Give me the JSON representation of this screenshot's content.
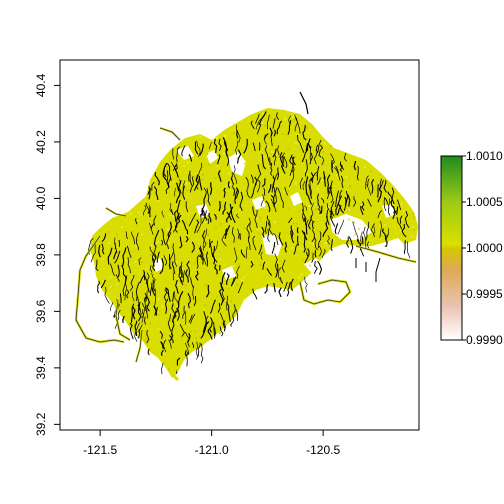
{
  "chart_data": {
    "type": "heatmap",
    "x_ticks": [
      "-121.5",
      "-121.0",
      "-120.5"
    ],
    "x_tick_values": [
      -121.5,
      -121.0,
      -120.5
    ],
    "y_ticks": [
      "39.2",
      "39.4",
      "39.6",
      "39.8",
      "40.0",
      "40.2",
      "40.4"
    ],
    "y_tick_values": [
      39.2,
      39.4,
      39.6,
      39.8,
      40.0,
      40.2,
      40.4
    ],
    "xlim": [
      -121.68,
      -120.07
    ],
    "ylim": [
      39.18,
      40.49
    ],
    "legend": {
      "placement": "right",
      "ticks": [
        "1.0010",
        "1.0005",
        "1.0000",
        "0.9995",
        "0.9990"
      ],
      "tick_values": [
        1.001,
        1.0005,
        1.0,
        0.9995,
        0.999
      ],
      "range": [
        0.999,
        1.001
      ],
      "colors": [
        "#FFFFFF",
        "#E9BFA8",
        "#DAA42E",
        "#D8E200",
        "#4FB02E",
        "#1E8C1E"
      ]
    },
    "fill_color": "#D9DE00",
    "line_color": "#000000"
  }
}
